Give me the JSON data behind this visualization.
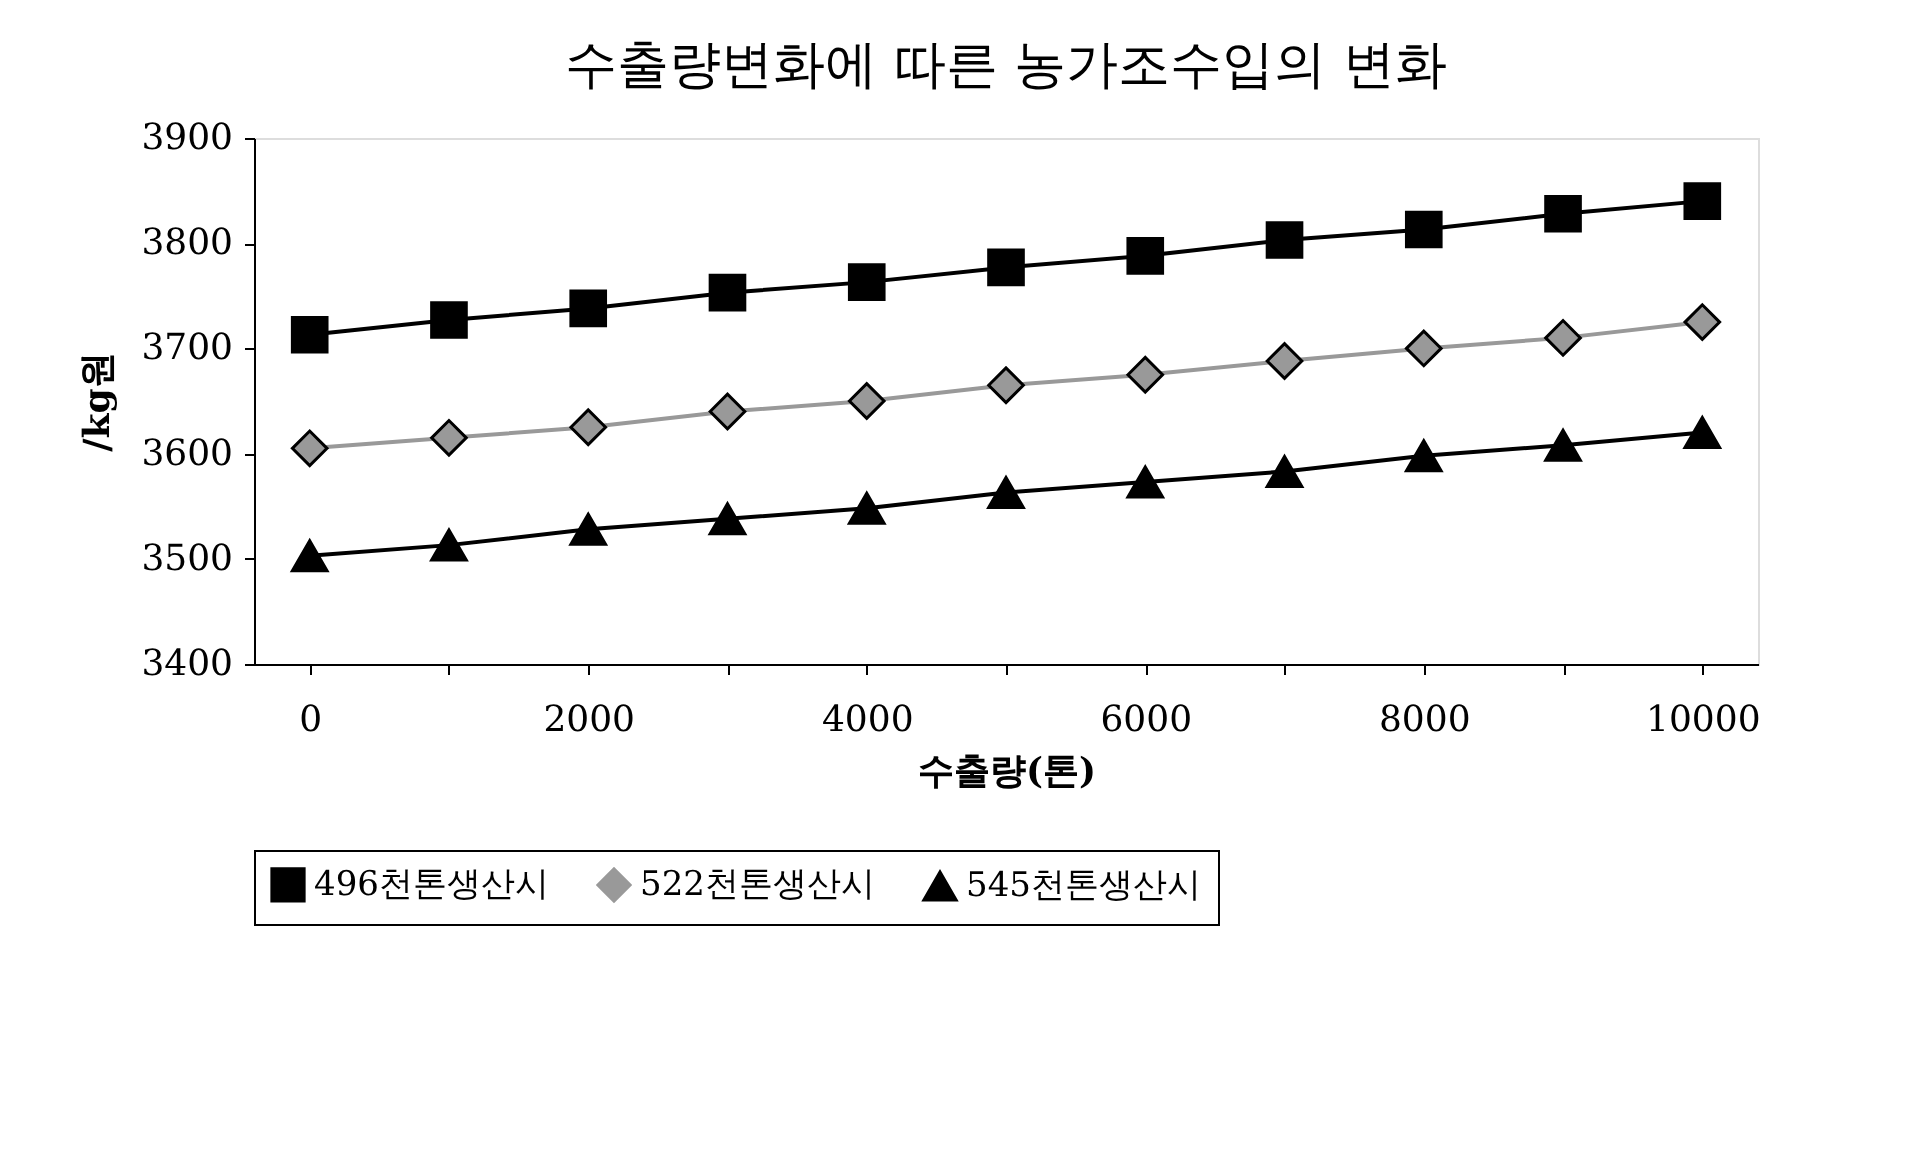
{
  "chart_data": {
    "type": "line",
    "title": "수출량변화에 따른 농가조수입의 변화",
    "xlabel": "수출량(톤)",
    "ylabel": "/kg원",
    "x": [
      0,
      1000,
      2000,
      3000,
      4000,
      5000,
      6000,
      7000,
      8000,
      9000,
      10000
    ],
    "series": [
      {
        "name": "496천톤생산시",
        "color": "#000000",
        "marker": "square",
        "values": [
          3713,
          3727,
          3738,
          3753,
          3763,
          3777,
          3788,
          3803,
          3813,
          3828,
          3840
        ]
      },
      {
        "name": "522천톤생산시",
        "color": "#999999",
        "marker": "diamond",
        "values": [
          3605,
          3615,
          3625,
          3640,
          3650,
          3665,
          3675,
          3688,
          3700,
          3710,
          3725
        ]
      },
      {
        "name": "545천톤생산시",
        "color": "#000000",
        "marker": "triangle",
        "values": [
          3503,
          3513,
          3528,
          3538,
          3548,
          3563,
          3573,
          3583,
          3598,
          3608,
          3620
        ]
      }
    ],
    "xlim": [
      -400,
      10400
    ],
    "xticks": [
      0,
      {
        "value": 1000,
        "label": null
      },
      2000,
      {
        "value": 3000,
        "label": null
      },
      4000,
      {
        "value": 5000,
        "label": null
      },
      6000,
      {
        "value": 7000,
        "label": null
      },
      8000,
      {
        "value": 9000,
        "label": null
      },
      10000
    ],
    "ylim": [
      3400,
      3900
    ],
    "yticks": [
      3400,
      3500,
      3600,
      3700,
      3800,
      3900
    ],
    "grid": false,
    "legend": "bottom",
    "line_style": "solid"
  }
}
